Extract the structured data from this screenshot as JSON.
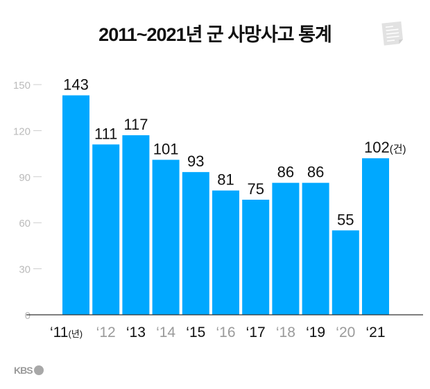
{
  "chart_data": {
    "type": "bar",
    "title": "2011~2021년 군 사망사고 통계",
    "categories": [
      "‘11",
      "‘12",
      "‘13",
      "‘14",
      "‘15",
      "‘16",
      "‘17",
      "‘18",
      "‘19",
      "‘20",
      "‘21"
    ],
    "first_category_unit": "(년)",
    "values": [
      143,
      111,
      117,
      101,
      93,
      81,
      75,
      86,
      86,
      55,
      102
    ],
    "last_value_unit": "(건)",
    "yticks": [
      0,
      30,
      60,
      90,
      120,
      150
    ],
    "ylim": [
      0,
      150
    ],
    "xlabel": "",
    "ylabel": "",
    "bar_color": "#00a8ff",
    "grid": false
  },
  "logo": "KBS"
}
